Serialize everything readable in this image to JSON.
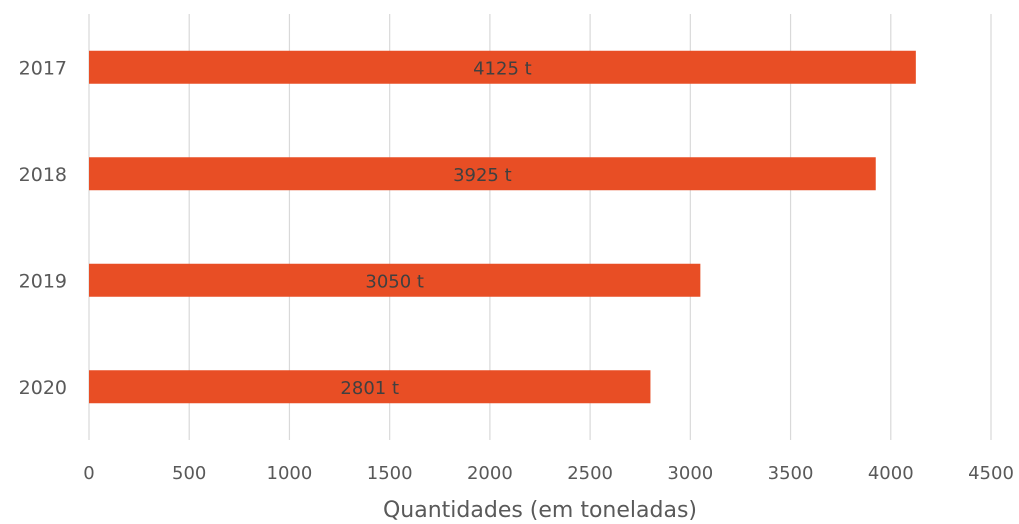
{
  "chart_data": {
    "type": "bar",
    "orientation": "horizontal",
    "categories": [
      "2017",
      "2018",
      "2019",
      "2020"
    ],
    "values": [
      4125,
      3925,
      3050,
      2801
    ],
    "data_labels": [
      "4125 t",
      "3925 t",
      "3050 t",
      "2801 t"
    ],
    "title": "",
    "xlabel": "Quantidades (em toneladas)",
    "ylabel": "",
    "xlim": [
      0,
      4500
    ],
    "x_ticks": [
      0,
      500,
      1000,
      1500,
      2000,
      2500,
      3000,
      3500,
      4000,
      4500
    ],
    "grid": true,
    "legend": "none",
    "colors": {
      "bar": "#e84e25",
      "grid": "#d9d9d9",
      "tick_text": "#595959",
      "data_label": "#404040"
    }
  }
}
